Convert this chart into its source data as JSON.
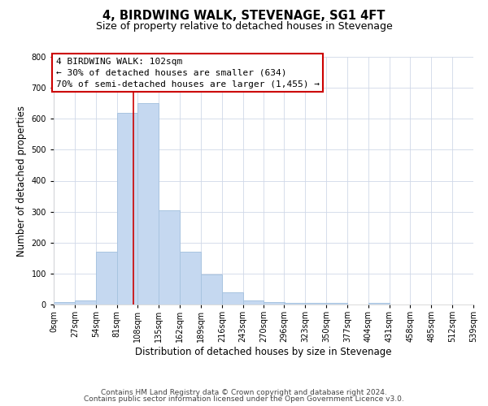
{
  "title": "4, BIRDWING WALK, STEVENAGE, SG1 4FT",
  "subtitle": "Size of property relative to detached houses in Stevenage",
  "xlabel": "Distribution of detached houses by size in Stevenage",
  "ylabel": "Number of detached properties",
  "bin_edges": [
    0,
    27,
    54,
    81,
    108,
    135,
    162,
    189,
    216,
    243,
    270,
    296,
    323,
    350,
    377,
    404,
    431,
    458,
    485,
    512,
    539
  ],
  "bar_heights": [
    8,
    14,
    170,
    620,
    650,
    305,
    170,
    97,
    40,
    14,
    8,
    5,
    5,
    5,
    0,
    5,
    0,
    0,
    0,
    0
  ],
  "bar_color": "#c5d8f0",
  "bar_edgecolor": "#a8c4e0",
  "bar_linewidth": 0.7,
  "vline_x": 102,
  "vline_color": "#cc0000",
  "vline_linewidth": 1.2,
  "ylim": [
    0,
    800
  ],
  "yticks": [
    0,
    100,
    200,
    300,
    400,
    500,
    600,
    700,
    800
  ],
  "annotation_line1": "4 BIRDWING WALK: 102sqm",
  "annotation_line2": "← 30% of detached houses are smaller (634)",
  "annotation_line3": "70% of semi-detached houses are larger (1,455) →",
  "footer_line1": "Contains HM Land Registry data © Crown copyright and database right 2024.",
  "footer_line2": "Contains public sector information licensed under the Open Government Licence v3.0.",
  "bg_color": "#ffffff",
  "grid_color": "#d0d8e8",
  "title_fontsize": 10.5,
  "subtitle_fontsize": 9,
  "xlabel_fontsize": 8.5,
  "ylabel_fontsize": 8.5,
  "tick_fontsize": 7,
  "annotation_fontsize": 8,
  "footer_fontsize": 6.5
}
